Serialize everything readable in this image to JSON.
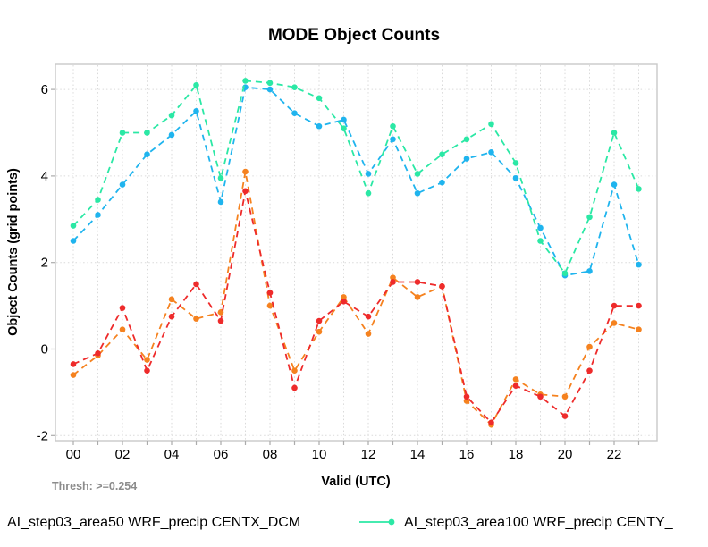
{
  "chart_data": {
    "type": "line",
    "title": "MODE Object Counts",
    "xlabel": "Valid (UTC)",
    "ylabel": "Object Counts (grid points)",
    "threshold_note": "Thresh: >=0.254",
    "x": [
      0,
      1,
      2,
      3,
      4,
      5,
      6,
      7,
      8,
      9,
      10,
      11,
      12,
      13,
      14,
      15,
      16,
      17,
      18,
      19,
      20,
      21,
      22,
      23
    ],
    "x_ticks": {
      "positions": [
        0,
        2,
        4,
        6,
        8,
        10,
        12,
        14,
        16,
        18,
        20,
        22
      ],
      "labels": [
        "00",
        "02",
        "04",
        "06",
        "08",
        "10",
        "12",
        "14",
        "16",
        "18",
        "20",
        "22"
      ]
    },
    "y_ticks": {
      "positions": [
        -2,
        0,
        2,
        4,
        6
      ],
      "labels": [
        "-2",
        "0",
        "2",
        "4",
        "6"
      ]
    },
    "ylim": [
      -2.2,
      6.5
    ],
    "grid": {
      "vertical": "every-hour",
      "horizontal": "at-y-ticks",
      "style": "dotted"
    },
    "legend_position": "bottom",
    "series": [
      {
        "id": "sky-blue-series",
        "color": "#1FB4EE",
        "line_style": "dashed",
        "marker": "circle",
        "legend_label": null,
        "values": [
          2.5,
          3.1,
          3.8,
          4.5,
          4.95,
          5.5,
          3.4,
          6.05,
          6.0,
          5.45,
          5.15,
          5.3,
          4.05,
          4.85,
          3.6,
          3.85,
          4.4,
          4.55,
          3.95,
          2.8,
          1.7,
          1.8,
          3.8,
          1.95
        ]
      },
      {
        "id": "spring-green-series",
        "color": "#2BE8A5",
        "line_style": "dashed",
        "marker": "circle",
        "legend_label": "AI_step03_area100 WRF_precip CENTY_",
        "values": [
          2.85,
          3.45,
          5.0,
          5.0,
          5.4,
          6.1,
          3.95,
          6.2,
          6.15,
          6.05,
          5.8,
          5.1,
          3.6,
          5.15,
          4.05,
          4.5,
          4.85,
          5.2,
          4.3,
          2.5,
          1.75,
          3.05,
          5.0,
          3.7
        ]
      },
      {
        "id": "orange-series",
        "color": "#F5821F",
        "line_style": "dashed",
        "marker": "circle",
        "legend_label": null,
        "values": [
          -0.6,
          -0.15,
          0.45,
          -0.25,
          1.15,
          0.7,
          0.85,
          4.1,
          1.0,
          -0.5,
          0.4,
          1.2,
          0.35,
          1.65,
          1.2,
          1.45,
          -1.2,
          -1.75,
          -0.7,
          -1.05,
          -1.1,
          0.05,
          0.6,
          0.45
        ]
      },
      {
        "id": "red-series",
        "color": "#EE2B2B",
        "line_style": "dashed",
        "marker": "circle",
        "legend_label": null,
        "values": [
          -0.35,
          -0.1,
          0.95,
          -0.5,
          0.75,
          1.5,
          0.65,
          3.65,
          1.3,
          -0.9,
          0.65,
          1.1,
          0.75,
          1.55,
          1.55,
          1.45,
          -1.1,
          -1.7,
          -0.85,
          -1.1,
          -1.55,
          -0.5,
          1.0,
          1.0
        ]
      }
    ],
    "legend_items": [
      {
        "label": "AI_step03_area50 WRF_precip CENTX_DCM",
        "marker_color": null
      },
      {
        "label": "AI_step03_area100 WRF_precip CENTY_",
        "marker_color": "#2BE8A5"
      }
    ]
  }
}
